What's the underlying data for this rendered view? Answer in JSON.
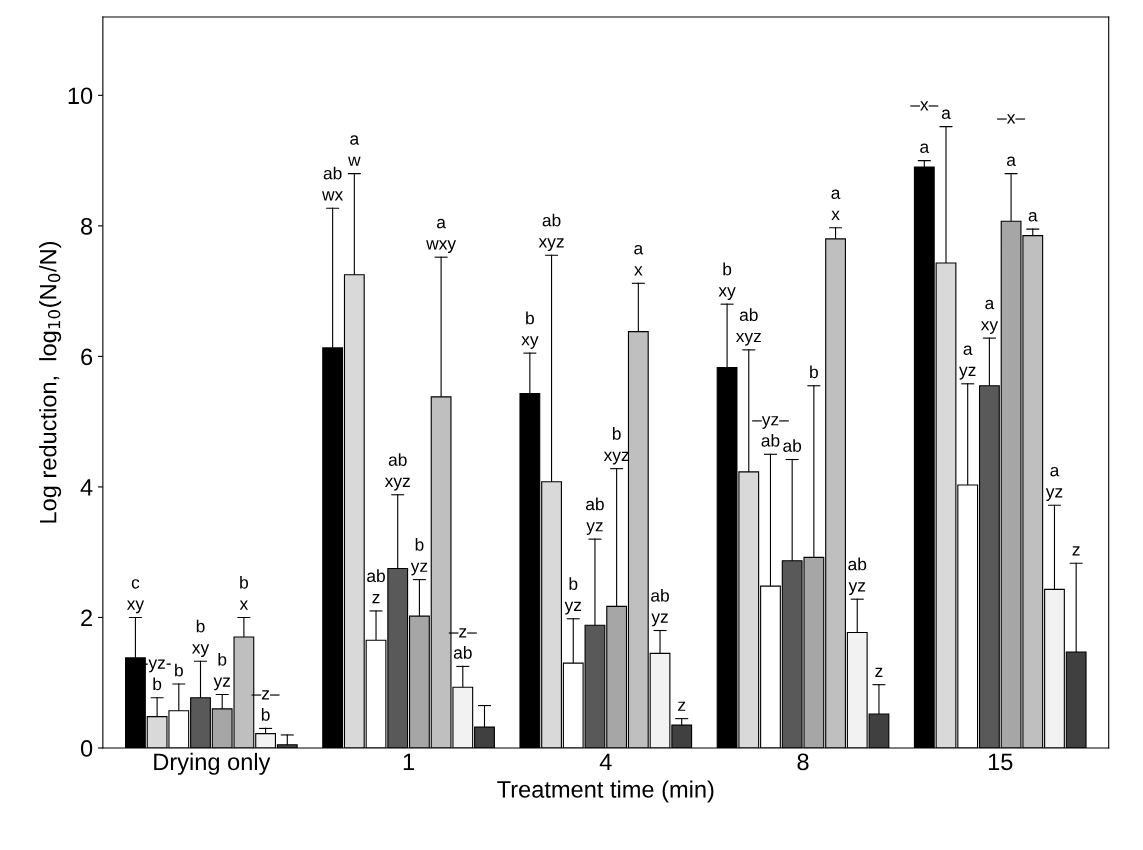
{
  "chart_data": {
    "type": "bar",
    "xlabel": "Treatment time (min)",
    "ylabel": "Log reduction,  log$_{10}$(N$_{0}$/N)",
    "categories": [
      "Drying only",
      "1",
      "4",
      "8",
      "15"
    ],
    "ylim": [
      0,
      11.2
    ],
    "yticks": [
      0,
      2,
      4,
      6,
      8,
      10
    ],
    "grid": false,
    "legend": false,
    "series": [
      {
        "color": "#000000",
        "values": [
          1.38,
          6.13,
          5.43,
          5.83,
          8.9
        ],
        "errors": [
          [
            1.38,
            2.0
          ],
          [
            6.13,
            8.27
          ],
          [
            5.43,
            6.05
          ],
          [
            5.83,
            6.8
          ],
          [
            8.9,
            9.0
          ]
        ]
      },
      {
        "color": "#d9d9d9",
        "values": [
          0.48,
          7.25,
          4.08,
          4.23,
          7.43
        ],
        "errors": [
          [
            0.48,
            0.77
          ],
          [
            7.25,
            8.8
          ],
          [
            4.08,
            7.55
          ],
          [
            4.23,
            6.1
          ],
          [
            7.43,
            9.52
          ]
        ]
      },
      {
        "color": "#ffffff",
        "values": [
          0.57,
          1.65,
          1.3,
          2.48,
          4.03
        ],
        "errors": [
          [
            0.57,
            0.98
          ],
          [
            1.65,
            2.1
          ],
          [
            1.3,
            1.98
          ],
          [
            2.48,
            4.5
          ],
          [
            4.03,
            5.58
          ]
        ]
      },
      {
        "color": "#595959",
        "values": [
          0.77,
          2.75,
          1.88,
          2.87,
          5.55
        ],
        "errors": [
          [
            0.77,
            1.33
          ],
          [
            2.75,
            3.88
          ],
          [
            1.88,
            3.2
          ],
          [
            2.87,
            4.42
          ],
          [
            5.55,
            6.28
          ]
        ]
      },
      {
        "color": "#a6a6a6",
        "values": [
          0.6,
          2.02,
          2.17,
          2.92,
          8.07
        ],
        "errors": [
          [
            0.6,
            0.82
          ],
          [
            2.02,
            2.58
          ],
          [
            2.17,
            4.28
          ],
          [
            2.92,
            5.55
          ],
          [
            8.07,
            8.8
          ]
        ]
      },
      {
        "color": "#bfbfbf",
        "values": [
          1.7,
          5.38,
          6.38,
          7.8,
          7.85
        ],
        "errors": [
          [
            1.7,
            2.0
          ],
          [
            5.38,
            7.52
          ],
          [
            6.38,
            7.12
          ],
          [
            7.8,
            7.97
          ],
          [
            7.85,
            7.95
          ]
        ]
      },
      {
        "color": "#f2f2f2",
        "values": [
          0.22,
          0.93,
          1.45,
          1.77,
          2.43
        ],
        "errors": [
          [
            0.22,
            0.3
          ],
          [
            0.93,
            1.25
          ],
          [
            1.45,
            1.8
          ],
          [
            1.77,
            2.28
          ],
          [
            2.43,
            3.72
          ]
        ]
      },
      {
        "color": "#404040",
        "values": [
          0.05,
          0.32,
          0.35,
          0.52,
          1.47
        ],
        "errors": [
          [
            0.05,
            0.2
          ],
          [
            0.32,
            0.65
          ],
          [
            0.35,
            0.45
          ],
          [
            0.52,
            0.97
          ],
          [
            1.47,
            2.83
          ]
        ]
      }
    ],
    "annotations": [
      "c\nxy",
      "-yz-\nb",
      "b",
      "b\nxy",
      "b\nyz",
      "b\nx",
      "–z–\nb",
      "ab\nwx",
      "a\nw",
      "ab\nz",
      "ab\nxyz",
      "b\nyz",
      "a\nwxy",
      "–z–\nab",
      "b\nxy",
      "ab\nxyz",
      "b\nyz",
      "ab\nyz",
      "b\nxyz",
      "a\nx",
      "ab\nyz",
      "z",
      "b\nxy",
      "ab\nxyz",
      "–yz–\nab",
      "ab",
      "b",
      "a\nx",
      "ab\nyz",
      "z",
      "–x–\n\na",
      "a",
      "a\nyz",
      "a\nxy",
      "–x–\n\na",
      "a",
      "a\nyz",
      "z"
    ]
  }
}
